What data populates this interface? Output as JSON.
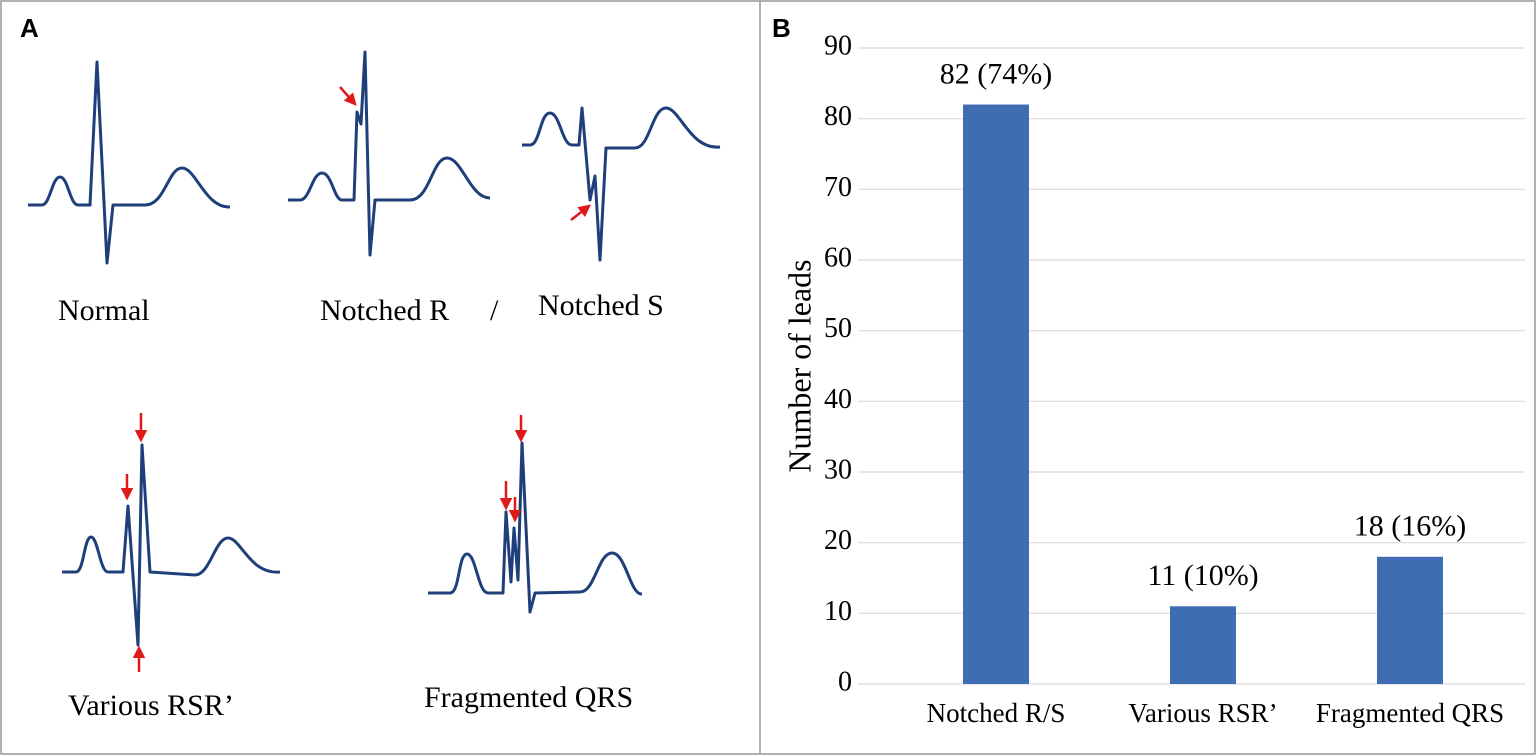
{
  "diagram": {
    "label": "A",
    "captions": [
      "Normal",
      "Notched R",
      "/",
      "Notched S",
      "Various RSR’",
      "Fragmented QRS"
    ]
  },
  "chart_data": {
    "type": "bar",
    "label": "B",
    "ylabel": "Number of leads",
    "categories": [
      "Notched R/S",
      "Various RSR’",
      "Fragmented QRS"
    ],
    "values": [
      82,
      11,
      18
    ],
    "value_labels": [
      "82 (74%)",
      "11 (10%)",
      "18 (16%)"
    ],
    "color": "#3f6db3",
    "ylim": [
      0,
      90
    ],
    "yticks": [
      0,
      10,
      20,
      30,
      40,
      50,
      60,
      70,
      80,
      90
    ],
    "grid": true
  }
}
